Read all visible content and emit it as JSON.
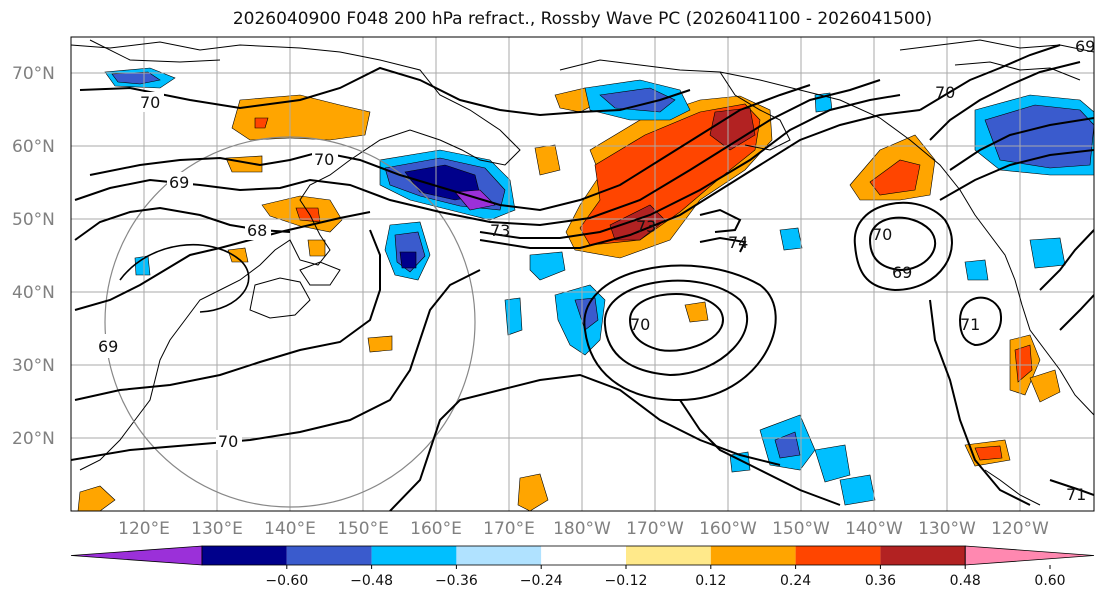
{
  "title": "2026040900 F048 200 hPa refract., Rossby Wave PC (2026041100 - 2026041500)",
  "lat_labels": [
    "70°N",
    "60°N",
    "50°N",
    "40°N",
    "30°N",
    "20°N"
  ],
  "lon_labels": [
    "120°E",
    "130°E",
    "140°E",
    "150°E",
    "160°E",
    "170°E",
    "180°W",
    "170°W",
    "160°W",
    "150°W",
    "140°W",
    "130°W",
    "120°W"
  ],
  "colorbar": {
    "ticks": [
      "−0.60",
      "−0.48",
      "−0.36",
      "−0.24",
      "−0.12",
      "0.12",
      "0.24",
      "0.36",
      "0.48",
      "0.60"
    ],
    "colors": [
      "#9b30d9",
      "#00008b",
      "#3a5bcd",
      "#00bfff",
      "#b0e2ff",
      "#ffffff",
      "#ffe98a",
      "#ffa500",
      "#ff4500",
      "#b22222",
      "#ff88b0"
    ]
  },
  "contour_labels": [
    "70",
    "70",
    "69",
    "68",
    "69",
    "70",
    "73",
    "73",
    "74",
    "70",
    "69",
    "70",
    "70",
    "71",
    "69",
    "71"
  ],
  "colors": {
    "frame": "#000000",
    "grid": "#aaaaaa",
    "contour": "#000000",
    "coast": "#000000",
    "circle": "#888888"
  }
}
